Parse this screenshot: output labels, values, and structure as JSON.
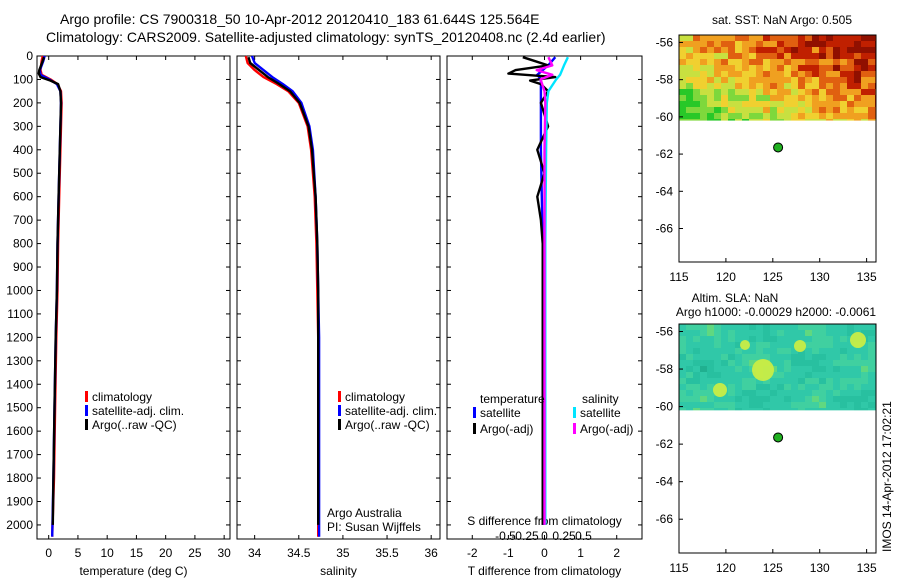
{
  "header": {
    "line1": "Argo profile: CS 7900318_50 10-Apr-2012 20120410_183 61.644S 125.564E",
    "line2": "Climatology: CARS2009. Satellite-adjusted climatology: synTS_20120408.nc (2.4d earlier)"
  },
  "colors": {
    "climatology": "#ff0000",
    "satellite": "#0000ff",
    "argo": "#000000",
    "sat_sal": "#00e5ff",
    "argo_sal": "#ff00ff",
    "argo_marker": "#20b020"
  },
  "chart_data": [
    {
      "type": "line",
      "id": "temperature",
      "xlabel": "temperature (deg C)",
      "ylabel": "",
      "xlim": [
        -2,
        31
      ],
      "ylim": [
        2060,
        0
      ],
      "xticks": [
        0,
        5,
        10,
        15,
        20,
        25,
        30
      ],
      "yticks": [
        0,
        100,
        200,
        300,
        400,
        500,
        600,
        700,
        800,
        900,
        1000,
        1100,
        1200,
        1300,
        1400,
        1500,
        1600,
        1700,
        1800,
        1900,
        2000
      ],
      "legend": [
        "climatology",
        "satellite-adj. clim.",
        "Argo(..raw -QC)"
      ],
      "series": [
        {
          "name": "climatology",
          "depth": [
            0,
            20,
            40,
            60,
            80,
            100,
            120,
            150,
            200,
            300,
            400,
            600,
            800,
            1000,
            1200,
            1500,
            1800,
            2050
          ],
          "values": [
            -1.0,
            -1.2,
            -1.3,
            -1.4,
            -1.2,
            0.3,
            1.5,
            2.1,
            2.2,
            2.1,
            2.0,
            1.8,
            1.6,
            1.5,
            1.3,
            1.1,
            0.9,
            0.6
          ]
        },
        {
          "name": "satellite-adj. clim.",
          "depth": [
            0,
            20,
            40,
            60,
            80,
            100,
            120,
            150,
            200,
            300,
            400,
            600,
            800,
            1000,
            1200,
            1500,
            1800,
            2050
          ],
          "values": [
            -0.7,
            -0.9,
            -1.2,
            -1.5,
            -1.4,
            0.1,
            1.4,
            2.0,
            2.1,
            2.0,
            1.9,
            1.7,
            1.5,
            1.4,
            1.2,
            1.0,
            0.8,
            0.6
          ]
        },
        {
          "name": "Argo(..raw -QC)",
          "depth": [
            5,
            20,
            40,
            60,
            75,
            90,
            105,
            120,
            150,
            200,
            300,
            400,
            600,
            800,
            1000,
            1200,
            1500,
            1800,
            2000
          ],
          "values": [
            -0.8,
            -1.0,
            -1.3,
            -1.6,
            -1.7,
            -1.4,
            0.3,
            1.6,
            2.0,
            2.1,
            2.0,
            1.9,
            1.7,
            1.5,
            1.4,
            1.2,
            1.0,
            0.8,
            0.7
          ]
        }
      ]
    },
    {
      "type": "line",
      "id": "salinity",
      "xlabel": "salinity",
      "xlim": [
        33.8,
        36.1
      ],
      "ylim": [
        2060,
        0
      ],
      "xticks": [
        34,
        34.5,
        35,
        35.5,
        36
      ],
      "legend": [
        "climatology",
        "satellite-adj. clim.",
        "Argo(..raw -QC)"
      ],
      "series": [
        {
          "name": "climatology",
          "depth": [
            0,
            30,
            60,
            90,
            120,
            150,
            200,
            300,
            400,
            600,
            800,
            1000,
            1200,
            1500,
            1800,
            2050
          ],
          "values": [
            33.9,
            33.92,
            34.0,
            34.1,
            34.25,
            34.38,
            34.5,
            34.6,
            34.64,
            34.68,
            34.7,
            34.71,
            34.72,
            34.72,
            34.72,
            34.72
          ]
        },
        {
          "name": "satellite-adj. clim.",
          "depth": [
            0,
            30,
            60,
            90,
            120,
            150,
            200,
            300,
            400,
            600,
            800,
            1000,
            1200,
            1500,
            1800,
            2050
          ],
          "values": [
            33.97,
            34.0,
            34.1,
            34.2,
            34.32,
            34.43,
            34.53,
            34.62,
            34.66,
            34.69,
            34.71,
            34.72,
            34.73,
            34.73,
            34.73,
            34.73
          ]
        },
        {
          "name": "Argo(..raw -QC)",
          "depth": [
            5,
            30,
            60,
            90,
            120,
            150,
            200,
            300,
            400,
            600,
            800,
            1000,
            1200,
            1500,
            1800,
            2000
          ],
          "values": [
            33.93,
            33.95,
            34.05,
            34.15,
            34.28,
            34.4,
            34.51,
            34.61,
            34.65,
            34.69,
            34.71,
            34.72,
            34.72,
            34.72,
            34.72,
            34.72
          ]
        }
      ],
      "annotation": [
        "Argo Australia",
        "PI: Susan Wijffels"
      ]
    },
    {
      "type": "line",
      "id": "difference",
      "xlabel": "T difference from climatology",
      "toplabel": "S difference from climatology",
      "xlim": [
        -2.7,
        2.7
      ],
      "ylim": [
        2060,
        0
      ],
      "xticks": [
        -2,
        -1,
        0,
        1,
        2
      ],
      "sticks": [
        -0.5,
        -0.25,
        0,
        0.25,
        0.5
      ],
      "legend_titles": [
        "temperature",
        "salinity"
      ],
      "legend": [
        "satellite",
        "Argo(-adj)",
        "satellite",
        "Argo(-adj)"
      ],
      "series": [
        {
          "name": "T satellite",
          "depth": [
            5,
            40,
            80,
            100,
            150,
            200,
            400,
            800,
            1200,
            1600,
            2000
          ],
          "values": [
            0.3,
            0.1,
            -0.2,
            -0.1,
            -0.1,
            -0.1,
            -0.1,
            -0.05,
            -0.05,
            -0.05,
            -0.05
          ]
        },
        {
          "name": "T Argo(-adj)",
          "depth": [
            5,
            20,
            40,
            60,
            75,
            90,
            105,
            120,
            150,
            200,
            300,
            400,
            500,
            600,
            700,
            800,
            1000,
            1200,
            1600,
            2000
          ],
          "values": [
            -0.6,
            -0.3,
            0.1,
            -0.8,
            -1.0,
            0.3,
            -0.4,
            -0.1,
            0.1,
            -0.1,
            0.1,
            -0.2,
            0.0,
            -0.2,
            -0.1,
            -0.05,
            -0.05,
            -0.05,
            -0.05,
            -0.05
          ]
        },
        {
          "name": "S satellite",
          "depth": [
            5,
            40,
            80,
            100,
            150,
            200,
            400,
            800,
            1200,
            1600,
            2000
          ],
          "values": [
            0.3,
            0.25,
            0.2,
            0.15,
            0.05,
            0.03,
            0.02,
            0.01,
            0.01,
            0.01,
            0.01
          ]
        },
        {
          "name": "S Argo(-adj)",
          "depth": [
            5,
            40,
            60,
            80,
            100,
            150,
            200,
            400,
            800,
            1200,
            2000
          ],
          "values": [
            0.05,
            0.1,
            -0.1,
            0.1,
            -0.05,
            0.0,
            0.01,
            0.0,
            0.0,
            0.0,
            0.0
          ]
        }
      ]
    },
    {
      "type": "heatmap",
      "id": "sst_map",
      "title": "sat. SST: NaN Argo: 0.505",
      "xlim": [
        115,
        136
      ],
      "ylim": [
        -67.8,
        -55.6
      ],
      "xticks": [
        115,
        120,
        125,
        130,
        135
      ],
      "yticks": [
        -56,
        -58,
        -60,
        -62,
        -64,
        -66
      ],
      "data_lat_min": -60.2,
      "marker": [
        125.564,
        -61.644
      ]
    },
    {
      "type": "heatmap",
      "id": "sla_map",
      "title": "Altim. SLA: NaN",
      "subtitle": "Argo h1000: -0.00029 h2000: -0.0061",
      "xlim": [
        115,
        136
      ],
      "ylim": [
        -67.8,
        -55.6
      ],
      "xticks": [
        115,
        120,
        125,
        130,
        135
      ],
      "yticks": [
        -56,
        -58,
        -60,
        -62,
        -64,
        -66
      ],
      "data_lat_min": -60.2,
      "marker": [
        125.564,
        -61.644
      ]
    }
  ],
  "footer": {
    "stamp": "IMOS 14-Apr-2012 17:02:21"
  }
}
